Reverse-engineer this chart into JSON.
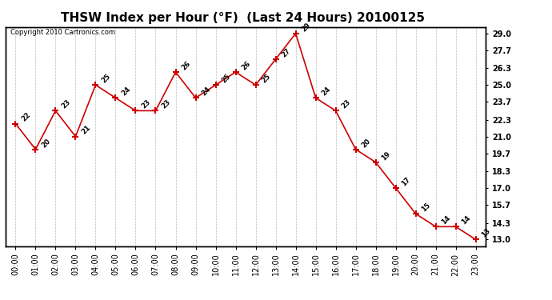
{
  "title": "THSW Index per Hour (°F)  (Last 24 Hours) 20100125",
  "copyright": "Copyright 2010 Cartronics.com",
  "hours": [
    "00:00",
    "01:00",
    "02:00",
    "03:00",
    "04:00",
    "05:00",
    "06:00",
    "07:00",
    "08:00",
    "09:00",
    "10:00",
    "11:00",
    "12:00",
    "13:00",
    "14:00",
    "15:00",
    "16:00",
    "17:00",
    "18:00",
    "19:00",
    "20:00",
    "21:00",
    "22:00",
    "23:00"
  ],
  "values": [
    22,
    20,
    23,
    21,
    25,
    24,
    23,
    23,
    26,
    24,
    25,
    26,
    25,
    27,
    29,
    24,
    23,
    20,
    19,
    17,
    15,
    14,
    14,
    13
  ],
  "y_ticks": [
    13.0,
    14.3,
    15.7,
    17.0,
    18.3,
    19.7,
    21.0,
    22.3,
    23.7,
    25.0,
    26.3,
    27.7,
    29.0
  ],
  "ylim": [
    12.5,
    29.5
  ],
  "line_color": "#cc0000",
  "marker_color": "#cc0000",
  "bg_color": "#ffffff",
  "plot_bg_color": "#ffffff",
  "grid_color": "#aaaaaa",
  "title_fontsize": 11,
  "label_fontsize": 7,
  "copyright_fontsize": 6,
  "annot_fontsize": 6
}
